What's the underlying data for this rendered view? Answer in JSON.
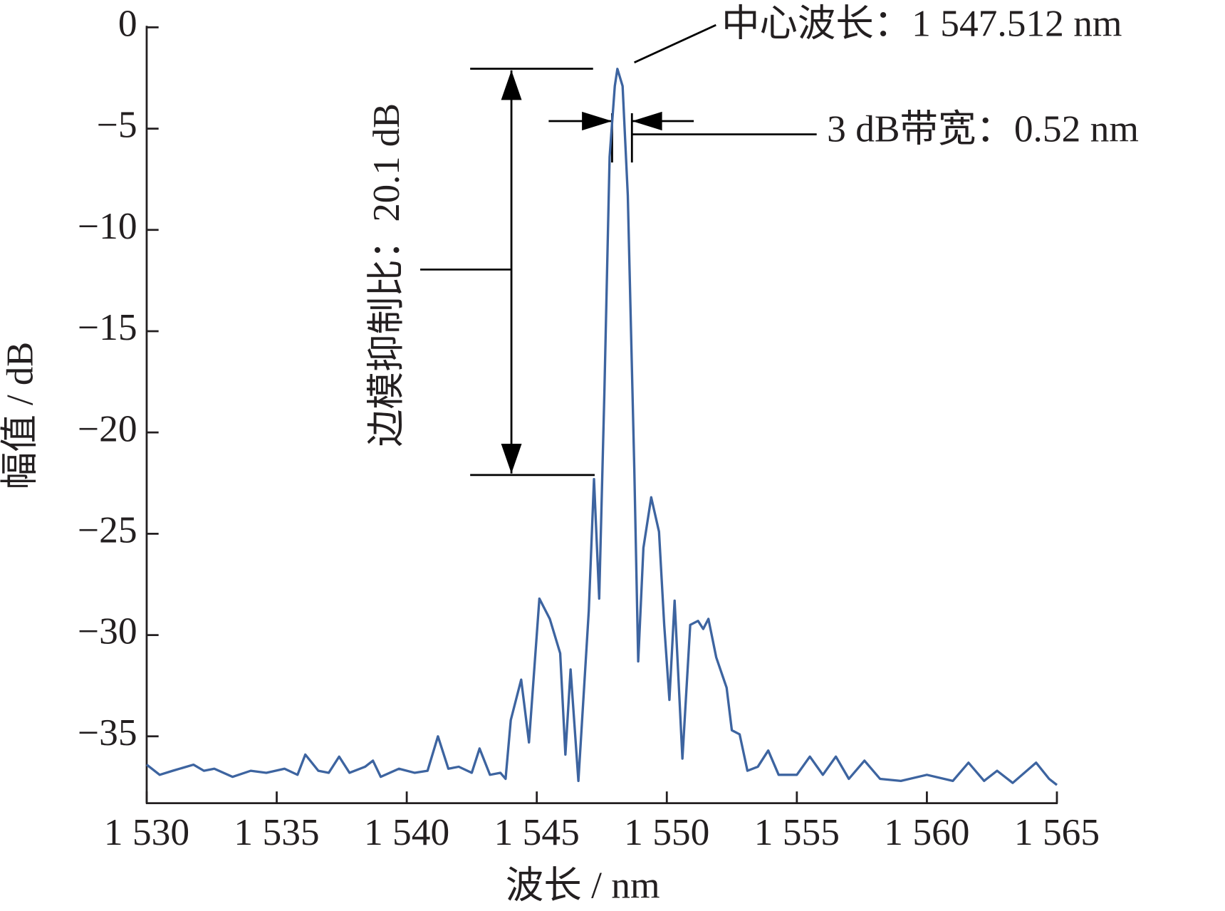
{
  "chart_data": {
    "type": "line",
    "xlabel": "波长 / nm",
    "ylabel": "幅值 / dB",
    "annotations": [
      "中心波长：1 547.512 nm",
      "3 dB带宽：0.52 nm",
      "边模抑制比：20.1 dB"
    ],
    "xlim": [
      1530,
      1565
    ],
    "xticks": [
      {
        "value": 1530,
        "label": "1 530"
      },
      {
        "value": 1535,
        "label": "1 535"
      },
      {
        "value": 1540,
        "label": "1 540"
      },
      {
        "value": 1545,
        "label": "1 545"
      },
      {
        "value": 1550,
        "label": "1 550"
      },
      {
        "value": 1555,
        "label": "1 555"
      },
      {
        "value": 1560,
        "label": "1 560"
      },
      {
        "value": 1565,
        "label": "1 565"
      }
    ],
    "ylim": [
      -38.3,
      0
    ],
    "yticks": [
      0,
      {
        "value": -5,
        "label": "−5"
      },
      {
        "value": -10,
        "label": "−10"
      },
      {
        "value": -15,
        "label": "−15"
      },
      {
        "value": -20,
        "label": "−20"
      },
      {
        "value": -25,
        "label": "−25"
      },
      {
        "value": -30,
        "label": "−30"
      },
      {
        "value": -35,
        "label": "−35"
      }
    ],
    "grid": false,
    "color": "#3d64a0",
    "x": [
      1530,
      1530.5,
      1531,
      1531.8,
      1532.2,
      1532.6,
      1533.3,
      1534,
      1534.6,
      1535.3,
      1535.8,
      1536.1,
      1536.6,
      1537,
      1537.4,
      1537.8,
      1538.4,
      1538.7,
      1539,
      1539.7,
      1540.3,
      1540.8,
      1541.2,
      1541.6,
      1542,
      1542.5,
      1542.8,
      1543.2,
      1543.6,
      1543.8,
      1544,
      1544.4,
      1544.7,
      1545.1,
      1545.5,
      1545.9,
      1546.1,
      1546.3,
      1546.6,
      1547,
      1547.2,
      1547.4,
      1547.6,
      1547.8,
      1548,
      1548.1,
      1548.3,
      1548.5,
      1548.75,
      1548.9,
      1549.1,
      1549.4,
      1549.7,
      1549.9,
      1550.1,
      1550.3,
      1550.6,
      1550.9,
      1551.2,
      1551.4,
      1551.6,
      1551.9,
      1552.3,
      1552.5,
      1552.8,
      1553.1,
      1553.5,
      1553.9,
      1554.3,
      1555,
      1555.5,
      1556,
      1556.5,
      1557,
      1557.6,
      1558.2,
      1559,
      1560,
      1561,
      1561.6,
      1562.2,
      1562.7,
      1563.3,
      1564.2,
      1564.7,
      1565
    ],
    "values": [
      -36.4,
      -36.9,
      -36.7,
      -36.4,
      -36.7,
      -36.6,
      -37.0,
      -36.7,
      -36.8,
      -36.6,
      -36.9,
      -35.9,
      -36.7,
      -36.8,
      -36.0,
      -36.8,
      -36.5,
      -36.2,
      -37.0,
      -36.6,
      -36.8,
      -36.7,
      -35.0,
      -36.6,
      -36.5,
      -36.8,
      -35.6,
      -36.9,
      -36.8,
      -37.1,
      -34.2,
      -32.2,
      -35.3,
      -28.2,
      -29.2,
      -30.9,
      -35.9,
      -31.7,
      -37.2,
      -28.8,
      -22.3,
      -28.2,
      -18.0,
      -6.4,
      -2.9,
      -2.05,
      -2.9,
      -8.3,
      -21.8,
      -31.3,
      -25.7,
      -23.2,
      -24.9,
      -29.5,
      -33.2,
      -28.3,
      -36.1,
      -29.5,
      -29.3,
      -29.7,
      -29.2,
      -31.1,
      -32.6,
      -34.7,
      -34.9,
      -36.7,
      -36.5,
      -35.7,
      -36.9,
      -36.9,
      -36.0,
      -36.9,
      -36.0,
      -37.1,
      -36.2,
      -37.1,
      -37.2,
      -36.9,
      -37.2,
      -36.3,
      -37.2,
      -36.7,
      -37.3,
      -36.3,
      -37.1,
      -37.4
    ]
  }
}
